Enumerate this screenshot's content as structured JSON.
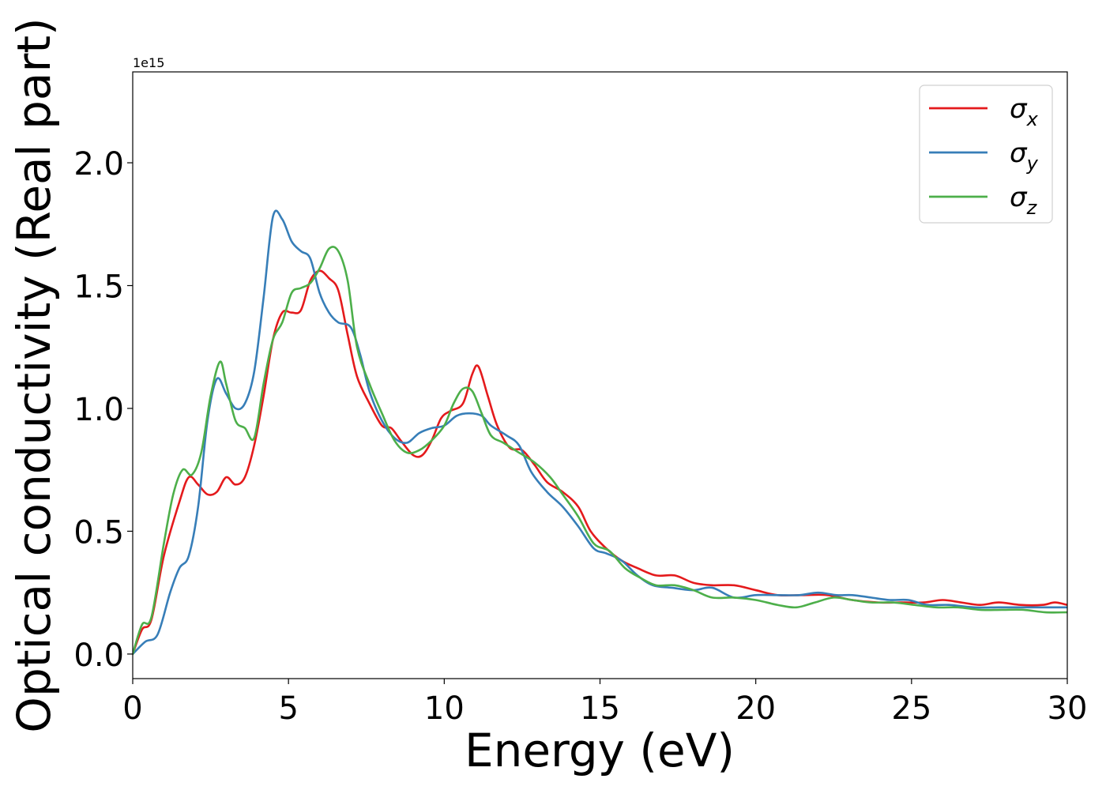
{
  "chart_data": {
    "type": "line",
    "title": "",
    "xlabel": "Energy (eV)",
    "ylabel": "Optical conductivity (Real part)",
    "y_offset_label": "1e15",
    "xlim": [
      0,
      30
    ],
    "ylim": [
      -0.1,
      2.37
    ],
    "x_ticks": [
      0,
      5,
      10,
      15,
      20,
      25,
      30
    ],
    "x_tick_labels": [
      "0",
      "5",
      "10",
      "15",
      "20",
      "25",
      "30"
    ],
    "y_ticks": [
      0.0,
      0.5,
      1.0,
      1.5,
      2.0
    ],
    "y_tick_labels": [
      "0.0",
      "0.5",
      "1.0",
      "1.5",
      "2.0"
    ],
    "grid": false,
    "legend_position": "top-right",
    "series": [
      {
        "name": "σx",
        "label_main": "σ",
        "label_sub": "x",
        "color": "#e41a1c",
        "points": [
          [
            0,
            0.0
          ],
          [
            0.3,
            0.1
          ],
          [
            0.6,
            0.14
          ],
          [
            1.0,
            0.4
          ],
          [
            1.5,
            0.62
          ],
          [
            1.8,
            0.72
          ],
          [
            2.1,
            0.69
          ],
          [
            2.4,
            0.65
          ],
          [
            2.7,
            0.66
          ],
          [
            3.0,
            0.72
          ],
          [
            3.3,
            0.69
          ],
          [
            3.6,
            0.72
          ],
          [
            3.9,
            0.85
          ],
          [
            4.2,
            1.05
          ],
          [
            4.5,
            1.28
          ],
          [
            4.8,
            1.39
          ],
          [
            5.1,
            1.39
          ],
          [
            5.4,
            1.4
          ],
          [
            5.7,
            1.52
          ],
          [
            6.0,
            1.56
          ],
          [
            6.3,
            1.53
          ],
          [
            6.6,
            1.48
          ],
          [
            6.9,
            1.3
          ],
          [
            7.2,
            1.13
          ],
          [
            7.6,
            1.02
          ],
          [
            8.0,
            0.93
          ],
          [
            8.3,
            0.92
          ],
          [
            8.6,
            0.87
          ],
          [
            9.0,
            0.81
          ],
          [
            9.3,
            0.81
          ],
          [
            9.6,
            0.87
          ],
          [
            9.9,
            0.96
          ],
          [
            10.2,
            0.99
          ],
          [
            10.6,
            1.02
          ],
          [
            10.9,
            1.14
          ],
          [
            11.1,
            1.17
          ],
          [
            11.4,
            1.05
          ],
          [
            11.7,
            0.93
          ],
          [
            12.1,
            0.84
          ],
          [
            12.5,
            0.83
          ],
          [
            12.9,
            0.77
          ],
          [
            13.3,
            0.7
          ],
          [
            13.8,
            0.66
          ],
          [
            14.3,
            0.6
          ],
          [
            14.7,
            0.5
          ],
          [
            15.2,
            0.43
          ],
          [
            15.7,
            0.38
          ],
          [
            16.2,
            0.35
          ],
          [
            16.8,
            0.32
          ],
          [
            17.4,
            0.32
          ],
          [
            18.0,
            0.29
          ],
          [
            18.6,
            0.28
          ],
          [
            19.3,
            0.28
          ],
          [
            20.0,
            0.26
          ],
          [
            20.7,
            0.24
          ],
          [
            21.5,
            0.24
          ],
          [
            22.3,
            0.24
          ],
          [
            23.1,
            0.22
          ],
          [
            23.9,
            0.21
          ],
          [
            24.7,
            0.21
          ],
          [
            25.4,
            0.21
          ],
          [
            26.0,
            0.22
          ],
          [
            26.6,
            0.21
          ],
          [
            27.2,
            0.2
          ],
          [
            27.8,
            0.21
          ],
          [
            28.5,
            0.2
          ],
          [
            29.2,
            0.2
          ],
          [
            29.6,
            0.21
          ],
          [
            30.0,
            0.2
          ]
        ]
      },
      {
        "name": "σy",
        "label_main": "σ",
        "label_sub": "y",
        "color": "#377eb8",
        "points": [
          [
            0,
            0.0
          ],
          [
            0.4,
            0.05
          ],
          [
            0.8,
            0.08
          ],
          [
            1.2,
            0.25
          ],
          [
            1.5,
            0.35
          ],
          [
            1.8,
            0.4
          ],
          [
            2.1,
            0.6
          ],
          [
            2.4,
            0.95
          ],
          [
            2.7,
            1.12
          ],
          [
            3.0,
            1.06
          ],
          [
            3.3,
            1.0
          ],
          [
            3.6,
            1.02
          ],
          [
            3.9,
            1.15
          ],
          [
            4.2,
            1.45
          ],
          [
            4.5,
            1.78
          ],
          [
            4.8,
            1.77
          ],
          [
            5.1,
            1.68
          ],
          [
            5.4,
            1.64
          ],
          [
            5.7,
            1.61
          ],
          [
            6.0,
            1.47
          ],
          [
            6.3,
            1.39
          ],
          [
            6.6,
            1.35
          ],
          [
            7.0,
            1.33
          ],
          [
            7.3,
            1.22
          ],
          [
            7.6,
            1.07
          ],
          [
            8.0,
            0.95
          ],
          [
            8.4,
            0.88
          ],
          [
            8.8,
            0.86
          ],
          [
            9.2,
            0.9
          ],
          [
            9.6,
            0.92
          ],
          [
            10.0,
            0.93
          ],
          [
            10.4,
            0.97
          ],
          [
            10.8,
            0.98
          ],
          [
            11.2,
            0.97
          ],
          [
            11.5,
            0.93
          ],
          [
            12.0,
            0.89
          ],
          [
            12.4,
            0.85
          ],
          [
            12.8,
            0.74
          ],
          [
            13.3,
            0.66
          ],
          [
            13.8,
            0.6
          ],
          [
            14.3,
            0.52
          ],
          [
            14.8,
            0.43
          ],
          [
            15.2,
            0.41
          ],
          [
            15.7,
            0.38
          ],
          [
            16.2,
            0.32
          ],
          [
            16.7,
            0.28
          ],
          [
            17.3,
            0.27
          ],
          [
            18.0,
            0.26
          ],
          [
            18.6,
            0.27
          ],
          [
            19.3,
            0.23
          ],
          [
            20.0,
            0.24
          ],
          [
            20.7,
            0.24
          ],
          [
            21.4,
            0.24
          ],
          [
            22.0,
            0.25
          ],
          [
            22.6,
            0.24
          ],
          [
            23.1,
            0.24
          ],
          [
            23.7,
            0.23
          ],
          [
            24.3,
            0.22
          ],
          [
            24.9,
            0.22
          ],
          [
            25.5,
            0.2
          ],
          [
            26.2,
            0.2
          ],
          [
            27.0,
            0.19
          ],
          [
            27.8,
            0.19
          ],
          [
            28.5,
            0.19
          ],
          [
            29.2,
            0.19
          ],
          [
            30.0,
            0.19
          ]
        ]
      },
      {
        "name": "σz",
        "label_main": "σ",
        "label_sub": "z",
        "color": "#4daf4a",
        "points": [
          [
            0,
            0.0
          ],
          [
            0.3,
            0.12
          ],
          [
            0.6,
            0.15
          ],
          [
            1.0,
            0.45
          ],
          [
            1.3,
            0.65
          ],
          [
            1.6,
            0.75
          ],
          [
            1.9,
            0.73
          ],
          [
            2.2,
            0.82
          ],
          [
            2.5,
            1.05
          ],
          [
            2.8,
            1.19
          ],
          [
            3.0,
            1.1
          ],
          [
            3.3,
            0.95
          ],
          [
            3.6,
            0.92
          ],
          [
            3.9,
            0.88
          ],
          [
            4.2,
            1.1
          ],
          [
            4.5,
            1.28
          ],
          [
            4.8,
            1.35
          ],
          [
            5.1,
            1.47
          ],
          [
            5.4,
            1.49
          ],
          [
            5.7,
            1.51
          ],
          [
            6.0,
            1.57
          ],
          [
            6.3,
            1.65
          ],
          [
            6.6,
            1.64
          ],
          [
            6.9,
            1.52
          ],
          [
            7.2,
            1.25
          ],
          [
            7.6,
            1.1
          ],
          [
            8.0,
            0.98
          ],
          [
            8.4,
            0.87
          ],
          [
            8.8,
            0.82
          ],
          [
            9.2,
            0.83
          ],
          [
            9.6,
            0.87
          ],
          [
            10.0,
            0.93
          ],
          [
            10.3,
            1.02
          ],
          [
            10.6,
            1.08
          ],
          [
            10.9,
            1.07
          ],
          [
            11.2,
            0.98
          ],
          [
            11.5,
            0.89
          ],
          [
            11.9,
            0.86
          ],
          [
            12.4,
            0.82
          ],
          [
            12.9,
            0.78
          ],
          [
            13.4,
            0.72
          ],
          [
            13.8,
            0.65
          ],
          [
            14.3,
            0.56
          ],
          [
            14.8,
            0.45
          ],
          [
            15.3,
            0.42
          ],
          [
            15.8,
            0.35
          ],
          [
            16.3,
            0.31
          ],
          [
            16.8,
            0.28
          ],
          [
            17.4,
            0.28
          ],
          [
            18.0,
            0.26
          ],
          [
            18.6,
            0.23
          ],
          [
            19.3,
            0.23
          ],
          [
            20.0,
            0.22
          ],
          [
            20.7,
            0.2
          ],
          [
            21.3,
            0.19
          ],
          [
            21.9,
            0.21
          ],
          [
            22.5,
            0.23
          ],
          [
            23.1,
            0.22
          ],
          [
            23.7,
            0.21
          ],
          [
            24.4,
            0.21
          ],
          [
            25.1,
            0.2
          ],
          [
            25.8,
            0.19
          ],
          [
            26.5,
            0.19
          ],
          [
            27.2,
            0.18
          ],
          [
            27.9,
            0.18
          ],
          [
            28.6,
            0.18
          ],
          [
            29.3,
            0.17
          ],
          [
            30.0,
            0.17
          ]
        ]
      }
    ]
  }
}
